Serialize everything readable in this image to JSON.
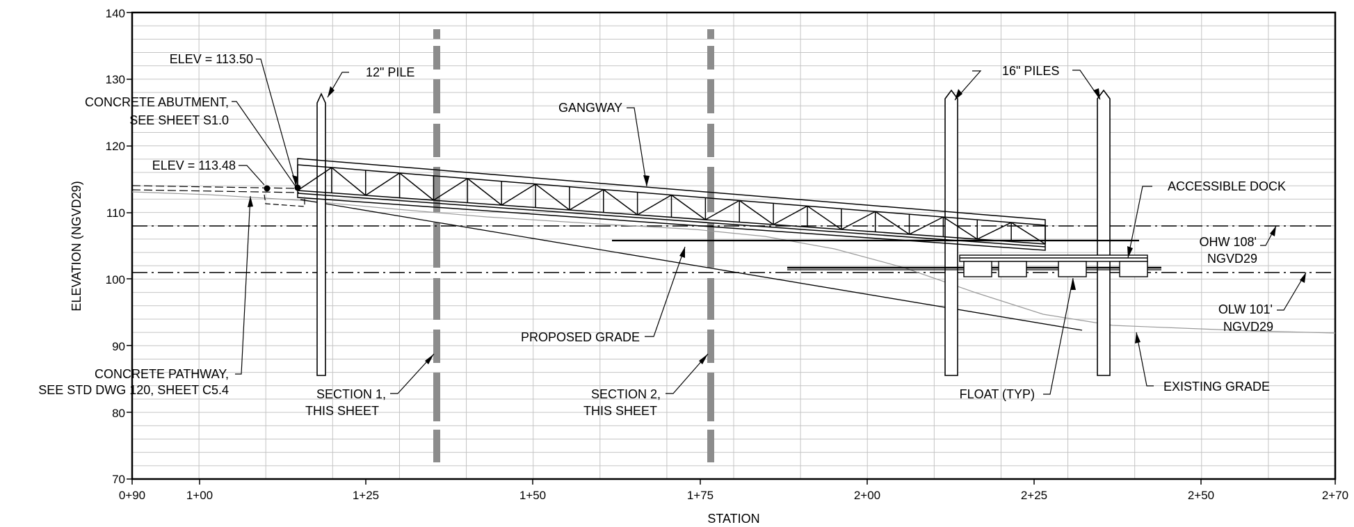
{
  "axes": {
    "x_title": "STATION",
    "y_title": "ELEVATION (NGVD29)",
    "x_ticks": [
      "0+90",
      "1+00",
      "1+25",
      "1+50",
      "1+75",
      "2+00",
      "2+25",
      "2+50",
      "2+70"
    ],
    "y_ticks": [
      "70",
      "80",
      "90",
      "100",
      "110",
      "120",
      "130",
      "140"
    ]
  },
  "labels": {
    "elev_top": "ELEV = 113.50",
    "pile_12": "12\" PILE",
    "abutment_1": "CONCRETE ABUTMENT,",
    "abutment_2": "SEE SHEET S1.0",
    "gangway": "GANGWAY",
    "elev_bottom": "ELEV = 113.48",
    "piles_16": "16\" PILES",
    "accessible_dock": "ACCESSIBLE DOCK",
    "ohw_1": "OHW 108'",
    "ohw_2": "NGVD29",
    "olw_1": "OLW 101'",
    "olw_2": "NGVD29",
    "proposed_grade": "PROPOSED GRADE",
    "pathway_1": "CONCRETE PATHWAY,",
    "pathway_2": "SEE STD DWG 120, SHEET C5.4",
    "section1_1": "SECTION 1,",
    "section1_2": "THIS SHEET",
    "section2_1": "SECTION 2,",
    "section2_2": "THIS SHEET",
    "float": "FLOAT (TYP)",
    "existing_grade": "EXISTING GRADE"
  },
  "colors": {
    "line": "#000000",
    "grid": "#b4b4b4",
    "section_bar": "#8c8c8c",
    "existing_grade": "#9a9a9a"
  }
}
